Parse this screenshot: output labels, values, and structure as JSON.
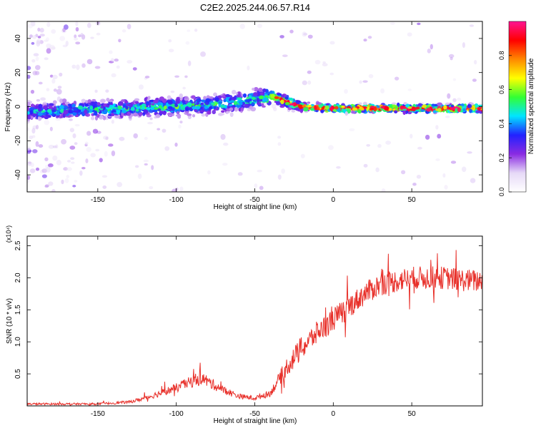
{
  "title": "C2E2.2025.244.06.57.R14",
  "colors": {
    "snr_line": "#e8302a",
    "axis": "#000000",
    "colormap": [
      "#ffffff",
      "#e6d9f7",
      "#8a2be2",
      "#2222ff",
      "#00e5ff",
      "#33ff33",
      "#ffff00",
      "#ff8800",
      "#ff0000",
      "#ff1493"
    ]
  },
  "chart_data": [
    {
      "type": "heatmap",
      "title": "",
      "xlabel": "Height of straight line (km)",
      "ylabel": "Frequency (Hz)",
      "xlim": [
        -195,
        95
      ],
      "ylim": [
        -50,
        50
      ],
      "xticks": [
        -150,
        -100,
        -50,
        0,
        50
      ],
      "yticks": [
        -40,
        -20,
        0,
        20,
        40
      ],
      "colorbar": {
        "label": "Normalized spectral amplitude",
        "range": [
          0.0,
          1.0
        ],
        "ticks": [
          0.0,
          0.2,
          0.4,
          0.6,
          0.8
        ],
        "tick_labels": [
          "0.0",
          "0.2",
          "0.4",
          "0.6",
          "0.8"
        ]
      },
      "ridge": {
        "description_points_km": [
          -195,
          -170,
          -130,
          -100,
          -80,
          -60,
          -45,
          -38,
          -30,
          -20,
          0,
          95
        ],
        "center_freq_hz": [
          -3,
          -2,
          -1,
          0,
          1,
          3,
          5,
          6,
          3,
          0,
          -1,
          -1
        ],
        "peak_amplitude": [
          0.45,
          0.5,
          0.55,
          0.55,
          0.55,
          0.55,
          0.6,
          0.75,
          0.9,
          0.92,
          0.95,
          0.95
        ]
      }
    },
    {
      "type": "line",
      "title": "",
      "xlabel": "Height of straight line (km)",
      "ylabel": "SNR (10 * v/v)",
      "scale_label": "(x10⁴)",
      "xlim": [
        -195,
        95
      ],
      "ylim": [
        0,
        2.65
      ],
      "xticks": [
        -150,
        -100,
        -50,
        0,
        50
      ],
      "yticks": [
        0.5,
        1.0,
        1.5,
        2.0,
        2.5
      ],
      "ytick_labels": [
        "0.5",
        "1.0",
        "1.5",
        "2.0",
        "2.5"
      ],
      "series": [
        {
          "name": "SNR",
          "envelope_x": [
            -195,
            -150,
            -130,
            -120,
            -110,
            -100,
            -90,
            -85,
            -80,
            -70,
            -60,
            -50,
            -40,
            -35,
            -30,
            -25,
            -20,
            -10,
            0,
            10,
            20,
            30,
            40,
            50,
            60,
            70,
            80,
            90,
            95
          ],
          "envelope_y": [
            0.03,
            0.03,
            0.06,
            0.12,
            0.2,
            0.28,
            0.38,
            0.45,
            0.38,
            0.25,
            0.15,
            0.12,
            0.2,
            0.4,
            0.6,
            0.75,
            0.9,
            1.15,
            1.35,
            1.55,
            1.75,
            1.9,
            1.95,
            2.0,
            2.0,
            2.0,
            1.97,
            1.95,
            1.95
          ],
          "noise_amplitude": 0.18
        }
      ]
    }
  ]
}
